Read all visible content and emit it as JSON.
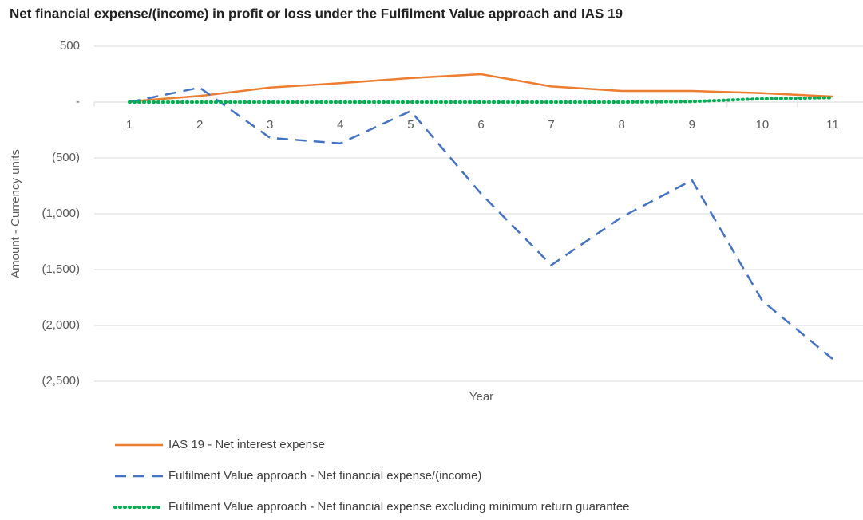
{
  "chart_data": {
    "type": "line",
    "title": "Net financial expense/(income) in profit or loss under the Fulfilment Value approach and IAS 19",
    "x_label": "Year",
    "y_label": "Amount - Currency units",
    "categories": [
      "1",
      "2",
      "3",
      "4",
      "5",
      "6",
      "7",
      "8",
      "9",
      "10",
      "11"
    ],
    "series": [
      {
        "name": "IAS 19 - Net interest expense",
        "color": "#ed7d31",
        "style": "solid",
        "values": [
          5,
          55,
          130,
          170,
          215,
          250,
          140,
          100,
          100,
          80,
          50
        ]
      },
      {
        "name": "Fulfilment Value approach - Net financial expense/(income)",
        "color": "#4472c4",
        "style": "dashed",
        "values": [
          0,
          130,
          -320,
          -370,
          -80,
          -820,
          -1460,
          -1030,
          -700,
          -1780,
          -2300
        ]
      },
      {
        "name": "Fulfilment Value approach - Net financial expense excluding minimum return guarantee",
        "color": "#00b050",
        "style": "dotted",
        "values": [
          0,
          0,
          0,
          0,
          0,
          0,
          0,
          0,
          5,
          30,
          40
        ]
      }
    ],
    "ylim": [
      -2500,
      500
    ],
    "yticks": [
      500,
      {
        "value": 0,
        "label": "-"
      },
      {
        "value": -500,
        "label": "(500)"
      },
      {
        "value": -1000,
        "label": "(1,000)"
      },
      {
        "value": -1500,
        "label": "(1,500)"
      },
      {
        "value": -2000,
        "label": "(2,000)"
      },
      {
        "value": -2500,
        "label": "(2,500)"
      }
    ],
    "grid": true,
    "legend": "bottom"
  }
}
